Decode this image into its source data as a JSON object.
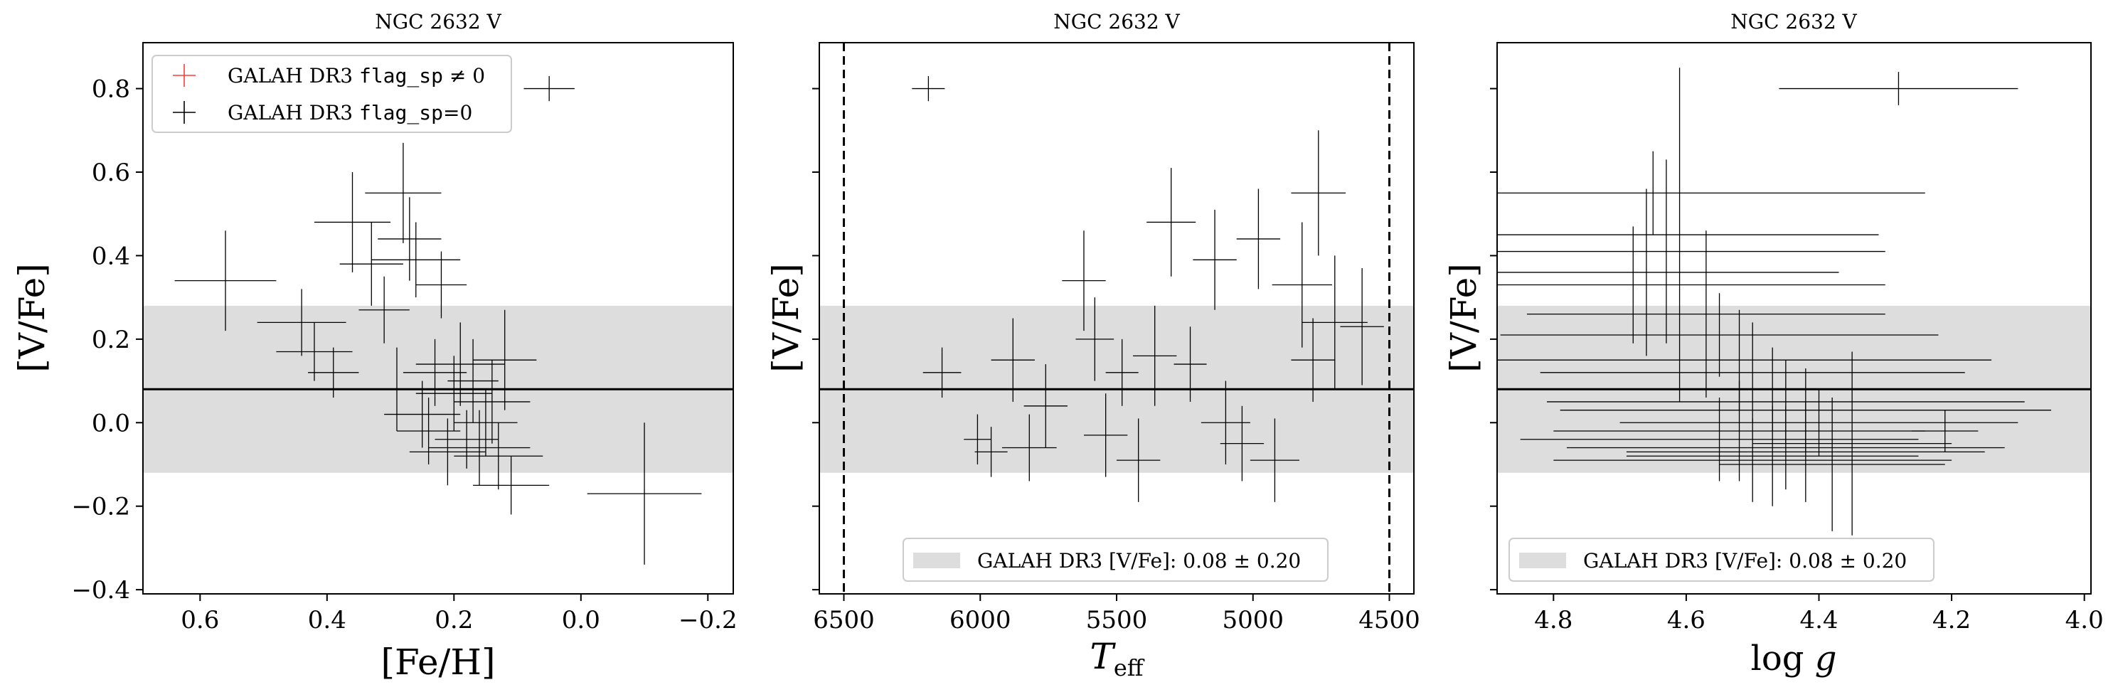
{
  "chart_data": [
    {
      "type": "scatter",
      "title": "NGC 2632 V",
      "xlabel": "[Fe/H]",
      "ylabel": "[V/Fe]",
      "xlim": [
        0.69,
        -0.24
      ],
      "ylim": [
        -0.41,
        0.91
      ],
      "x_ticks": [
        0.6,
        0.4,
        0.2,
        0.0,
        -0.2
      ],
      "x_tick_labels": [
        "0.6",
        "0.4",
        "0.2",
        "0.0",
        "−0.2"
      ],
      "y_ticks": [
        -0.4,
        -0.2,
        0.0,
        0.2,
        0.4,
        0.6,
        0.8
      ],
      "y_tick_labels": [
        "−0.4",
        "−0.2",
        "0.0",
        "0.2",
        "0.4",
        "0.6",
        "0.8"
      ],
      "reference_line": 0.08,
      "reference_band": [
        -0.12,
        0.28
      ],
      "legend": {
        "placement": "upper left",
        "entries": [
          {
            "prefix": "GALAH DR3 ",
            "code": "flag_sp",
            "suffix": " ≠ 0",
            "color": "#ff3b3b"
          },
          {
            "prefix": "GALAH DR3 ",
            "code": "flag_sp",
            "suffix": "=0",
            "color": "#000000"
          }
        ]
      },
      "series": [
        {
          "color": "#000000",
          "points": [
            {
              "x": 0.56,
              "y": 0.34,
              "xerr": 0.08,
              "yerr": 0.12
            },
            {
              "x": 0.44,
              "y": 0.24,
              "xerr": 0.07,
              "yerr": 0.08
            },
            {
              "x": 0.42,
              "y": 0.17,
              "xerr": 0.06,
              "yerr": 0.07
            },
            {
              "x": 0.39,
              "y": 0.12,
              "xerr": 0.04,
              "yerr": 0.06
            },
            {
              "x": 0.36,
              "y": 0.48,
              "xerr": 0.06,
              "yerr": 0.12
            },
            {
              "x": 0.33,
              "y": 0.38,
              "xerr": 0.05,
              "yerr": 0.1
            },
            {
              "x": 0.31,
              "y": 0.27,
              "xerr": 0.04,
              "yerr": 0.08
            },
            {
              "x": 0.29,
              "y": 0.08,
              "xerr": 0.05,
              "yerr": 0.1
            },
            {
              "x": 0.28,
              "y": 0.55,
              "xerr": 0.06,
              "yerr": 0.12
            },
            {
              "x": 0.27,
              "y": 0.44,
              "xerr": 0.05,
              "yerr": 0.1
            },
            {
              "x": 0.26,
              "y": 0.39,
              "xerr": 0.07,
              "yerr": 0.09
            },
            {
              "x": 0.25,
              "y": 0.02,
              "xerr": 0.06,
              "yerr": 0.08
            },
            {
              "x": 0.24,
              "y": -0.02,
              "xerr": 0.05,
              "yerr": 0.08
            },
            {
              "x": 0.23,
              "y": 0.12,
              "xerr": 0.05,
              "yerr": 0.08
            },
            {
              "x": 0.22,
              "y": 0.33,
              "xerr": 0.04,
              "yerr": 0.08
            },
            {
              "x": 0.21,
              "y": -0.07,
              "xerr": 0.06,
              "yerr": 0.08
            },
            {
              "x": 0.2,
              "y": 0.07,
              "xerr": 0.06,
              "yerr": 0.09
            },
            {
              "x": 0.19,
              "y": 0.14,
              "xerr": 0.07,
              "yerr": 0.1
            },
            {
              "x": 0.18,
              "y": -0.04,
              "xerr": 0.05,
              "yerr": 0.07
            },
            {
              "x": 0.17,
              "y": 0.1,
              "xerr": 0.04,
              "yerr": 0.1
            },
            {
              "x": 0.16,
              "y": -0.06,
              "xerr": 0.08,
              "yerr": 0.09
            },
            {
              "x": 0.15,
              "y": 0.0,
              "xerr": 0.05,
              "yerr": 0.08
            },
            {
              "x": 0.14,
              "y": 0.05,
              "xerr": 0.06,
              "yerr": 0.1
            },
            {
              "x": 0.13,
              "y": -0.08,
              "xerr": 0.07,
              "yerr": 0.08
            },
            {
              "x": 0.12,
              "y": 0.15,
              "xerr": 0.05,
              "yerr": 0.12
            },
            {
              "x": 0.11,
              "y": -0.15,
              "xerr": 0.06,
              "yerr": 0.07
            },
            {
              "x": 0.05,
              "y": 0.8,
              "xerr": 0.04,
              "yerr": 0.03
            },
            {
              "x": -0.1,
              "y": -0.17,
              "xerr": 0.09,
              "yerr": 0.17
            }
          ]
        }
      ]
    },
    {
      "type": "scatter",
      "title": "NGC 2632 V",
      "xlabel": "T_eff",
      "ylabel": "[V/Fe]",
      "xlim": [
        6590,
        4410
      ],
      "ylim": [
        -0.41,
        0.91
      ],
      "x_ticks": [
        6500,
        6000,
        5500,
        5000,
        4500
      ],
      "x_tick_labels": [
        "6500",
        "6000",
        "5500",
        "5000",
        "4500"
      ],
      "y_ticks": [
        -0.4,
        -0.2,
        0.0,
        0.2,
        0.4,
        0.6,
        0.8
      ],
      "reference_line": 0.08,
      "reference_band": [
        -0.12,
        0.28
      ],
      "vlines": [
        6500,
        4500
      ],
      "legend": {
        "placement": "lower center",
        "entries": [
          {
            "label": "GALAH DR3 [V/Fe]: 0.08 ± 0.20",
            "color": "#dddddd"
          }
        ]
      },
      "series": [
        {
          "color": "#000000",
          "points": [
            {
              "x": 6190,
              "y": 0.8,
              "xerr": 60,
              "yerr": 0.03
            },
            {
              "x": 6140,
              "y": 0.12,
              "xerr": 70,
              "yerr": 0.06
            },
            {
              "x": 6010,
              "y": -0.04,
              "xerr": 50,
              "yerr": 0.06
            },
            {
              "x": 5960,
              "y": -0.07,
              "xerr": 60,
              "yerr": 0.06
            },
            {
              "x": 5880,
              "y": 0.15,
              "xerr": 80,
              "yerr": 0.1
            },
            {
              "x": 5820,
              "y": -0.06,
              "xerr": 100,
              "yerr": 0.08
            },
            {
              "x": 5760,
              "y": 0.04,
              "xerr": 80,
              "yerr": 0.1
            },
            {
              "x": 5620,
              "y": 0.34,
              "xerr": 80,
              "yerr": 0.12
            },
            {
              "x": 5580,
              "y": 0.2,
              "xerr": 70,
              "yerr": 0.1
            },
            {
              "x": 5540,
              "y": -0.03,
              "xerr": 80,
              "yerr": 0.1
            },
            {
              "x": 5480,
              "y": 0.12,
              "xerr": 60,
              "yerr": 0.08
            },
            {
              "x": 5420,
              "y": -0.09,
              "xerr": 80,
              "yerr": 0.1
            },
            {
              "x": 5360,
              "y": 0.16,
              "xerr": 80,
              "yerr": 0.12
            },
            {
              "x": 5300,
              "y": 0.48,
              "xerr": 90,
              "yerr": 0.13
            },
            {
              "x": 5230,
              "y": 0.14,
              "xerr": 60,
              "yerr": 0.09
            },
            {
              "x": 5140,
              "y": 0.39,
              "xerr": 80,
              "yerr": 0.12
            },
            {
              "x": 5100,
              "y": 0.0,
              "xerr": 90,
              "yerr": 0.1
            },
            {
              "x": 5040,
              "y": -0.05,
              "xerr": 80,
              "yerr": 0.09
            },
            {
              "x": 4980,
              "y": 0.44,
              "xerr": 80,
              "yerr": 0.12
            },
            {
              "x": 4920,
              "y": -0.09,
              "xerr": 90,
              "yerr": 0.1
            },
            {
              "x": 4820,
              "y": 0.33,
              "xerr": 110,
              "yerr": 0.15
            },
            {
              "x": 4780,
              "y": 0.15,
              "xerr": 80,
              "yerr": 0.1
            },
            {
              "x": 4760,
              "y": 0.55,
              "xerr": 100,
              "yerr": 0.15
            },
            {
              "x": 4700,
              "y": 0.24,
              "xerr": 120,
              "yerr": 0.16
            },
            {
              "x": 4600,
              "y": 0.23,
              "xerr": 80,
              "yerr": 0.14
            }
          ]
        }
      ]
    },
    {
      "type": "scatter",
      "title": "NGC 2632 V",
      "xlabel": "log g",
      "ylabel": "[V/Fe]",
      "xlim": [
        4.885,
        3.99
      ],
      "ylim": [
        -0.41,
        0.91
      ],
      "x_ticks": [
        4.8,
        4.6,
        4.4,
        4.2,
        4.0
      ],
      "x_tick_labels": [
        "4.8",
        "4.6",
        "4.4",
        "4.2",
        "4.0"
      ],
      "y_ticks": [
        -0.4,
        -0.2,
        0.0,
        0.2,
        0.4,
        0.6,
        0.8
      ],
      "reference_line": 0.08,
      "reference_band": [
        -0.12,
        0.28
      ],
      "legend": {
        "placement": "lower left",
        "entries": [
          {
            "label": "GALAH DR3 [V/Fe]: 0.08 ± 0.20",
            "color": "#dddddd"
          }
        ]
      },
      "series": [
        {
          "color": "#000000",
          "points": [
            {
              "x": 4.28,
              "y": 0.8,
              "xerr": 0.18,
              "yerr": 0.04
            },
            {
              "x": 4.65,
              "y": 0.55,
              "xerr": 0.41,
              "yerr": 0.1
            },
            {
              "x": 4.61,
              "y": 0.45,
              "xerr": 0.3,
              "yerr": 0.4
            },
            {
              "x": 4.63,
              "y": 0.41,
              "xerr": 0.33,
              "yerr": 0.22
            },
            {
              "x": 4.66,
              "y": 0.36,
              "xerr": 0.29,
              "yerr": 0.2
            },
            {
              "x": 4.68,
              "y": 0.33,
              "xerr": 0.38,
              "yerr": 0.14
            },
            {
              "x": 4.57,
              "y": 0.26,
              "xerr": 0.27,
              "yerr": 0.2
            },
            {
              "x": 4.55,
              "y": 0.21,
              "xerr": 0.33,
              "yerr": 0.1
            },
            {
              "x": 4.52,
              "y": 0.15,
              "xerr": 0.38,
              "yerr": 0.12
            },
            {
              "x": 4.5,
              "y": 0.12,
              "xerr": 0.32,
              "yerr": 0.12
            },
            {
              "x": 4.47,
              "y": 0.08,
              "xerr": 0.29,
              "yerr": 0.1
            },
            {
              "x": 4.45,
              "y": 0.05,
              "xerr": 0.36,
              "yerr": 0.1
            },
            {
              "x": 4.42,
              "y": 0.03,
              "xerr": 0.37,
              "yerr": 0.1
            },
            {
              "x": 4.4,
              "y": 0.0,
              "xerr": 0.3,
              "yerr": 0.08
            },
            {
              "x": 4.52,
              "y": -0.02,
              "xerr": 0.28,
              "yerr": 0.12
            },
            {
              "x": 4.55,
              "y": -0.04,
              "xerr": 0.3,
              "yerr": 0.1
            },
            {
              "x": 4.45,
              "y": -0.06,
              "xerr": 0.33,
              "yerr": 0.1
            },
            {
              "x": 4.42,
              "y": -0.07,
              "xerr": 0.27,
              "yerr": 0.12
            },
            {
              "x": 4.47,
              "y": -0.08,
              "xerr": 0.22,
              "yerr": 0.12
            },
            {
              "x": 4.5,
              "y": -0.09,
              "xerr": 0.3,
              "yerr": 0.1
            },
            {
              "x": 4.38,
              "y": -0.1,
              "xerr": 0.17,
              "yerr": 0.16
            },
            {
              "x": 4.35,
              "y": -0.05,
              "xerr": 0.15,
              "yerr": 0.22
            },
            {
              "x": 4.21,
              "y": -0.02,
              "xerr": 0.05,
              "yerr": 0.05
            }
          ]
        }
      ]
    }
  ]
}
